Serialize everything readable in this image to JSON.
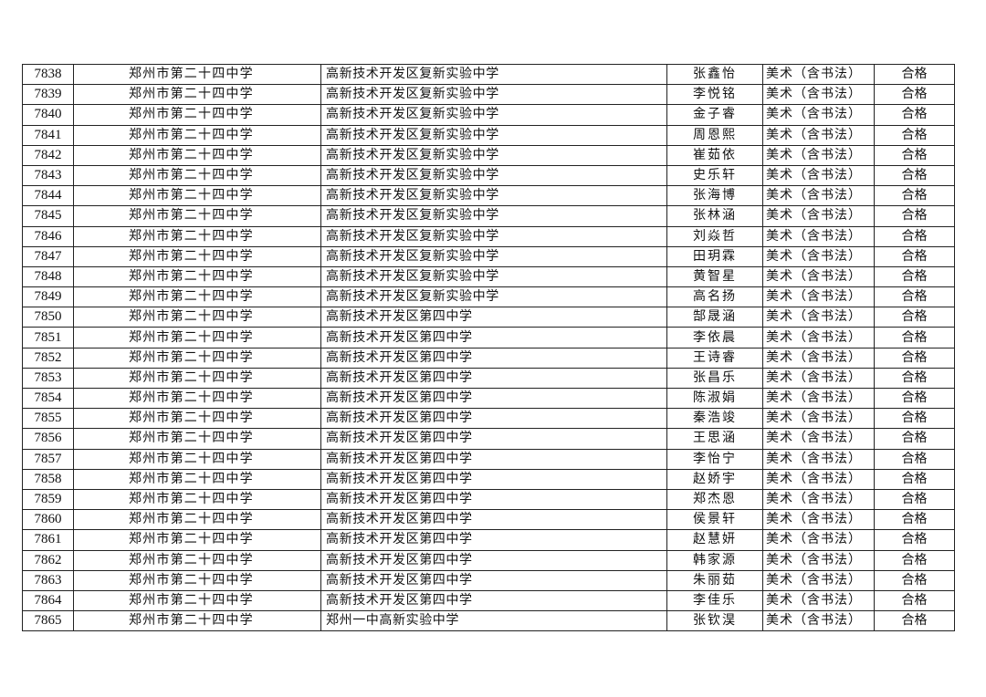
{
  "rows": [
    [
      "7838",
      "郑州市第二十四中学",
      "高新技术开发区复新实验中学",
      "张鑫怡",
      "美术（含书法）",
      "合格"
    ],
    [
      "7839",
      "郑州市第二十四中学",
      "高新技术开发区复新实验中学",
      "李悦铭",
      "美术（含书法）",
      "合格"
    ],
    [
      "7840",
      "郑州市第二十四中学",
      "高新技术开发区复新实验中学",
      "金子睿",
      "美术（含书法）",
      "合格"
    ],
    [
      "7841",
      "郑州市第二十四中学",
      "高新技术开发区复新实验中学",
      "周恩熙",
      "美术（含书法）",
      "合格"
    ],
    [
      "7842",
      "郑州市第二十四中学",
      "高新技术开发区复新实验中学",
      "崔茹依",
      "美术（含书法）",
      "合格"
    ],
    [
      "7843",
      "郑州市第二十四中学",
      "高新技术开发区复新实验中学",
      "史乐轩",
      "美术（含书法）",
      "合格"
    ],
    [
      "7844",
      "郑州市第二十四中学",
      "高新技术开发区复新实验中学",
      "张海博",
      "美术（含书法）",
      "合格"
    ],
    [
      "7845",
      "郑州市第二十四中学",
      "高新技术开发区复新实验中学",
      "张林涵",
      "美术（含书法）",
      "合格"
    ],
    [
      "7846",
      "郑州市第二十四中学",
      "高新技术开发区复新实验中学",
      "刘焱哲",
      "美术（含书法）",
      "合格"
    ],
    [
      "7847",
      "郑州市第二十四中学",
      "高新技术开发区复新实验中学",
      "田玥霖",
      "美术（含书法）",
      "合格"
    ],
    [
      "7848",
      "郑州市第二十四中学",
      "高新技术开发区复新实验中学",
      "黄智星",
      "美术（含书法）",
      "合格"
    ],
    [
      "7849",
      "郑州市第二十四中学",
      "高新技术开发区复新实验中学",
      "高名扬",
      "美术（含书法）",
      "合格"
    ],
    [
      "7850",
      "郑州市第二十四中学",
      "高新技术开发区第四中学",
      "郜晟涵",
      "美术（含书法）",
      "合格"
    ],
    [
      "7851",
      "郑州市第二十四中学",
      "高新技术开发区第四中学",
      "李依晨",
      "美术（含书法）",
      "合格"
    ],
    [
      "7852",
      "郑州市第二十四中学",
      "高新技术开发区第四中学",
      "王诗睿",
      "美术（含书法）",
      "合格"
    ],
    [
      "7853",
      "郑州市第二十四中学",
      "高新技术开发区第四中学",
      "张昌乐",
      "美术（含书法）",
      "合格"
    ],
    [
      "7854",
      "郑州市第二十四中学",
      "高新技术开发区第四中学",
      "陈淑娟",
      "美术（含书法）",
      "合格"
    ],
    [
      "7855",
      "郑州市第二十四中学",
      "高新技术开发区第四中学",
      "秦浩竣",
      "美术（含书法）",
      "合格"
    ],
    [
      "7856",
      "郑州市第二十四中学",
      "高新技术开发区第四中学",
      "王思涵",
      "美术（含书法）",
      "合格"
    ],
    [
      "7857",
      "郑州市第二十四中学",
      "高新技术开发区第四中学",
      "李怡宁",
      "美术（含书法）",
      "合格"
    ],
    [
      "7858",
      "郑州市第二十四中学",
      "高新技术开发区第四中学",
      "赵娇宇",
      "美术（含书法）",
      "合格"
    ],
    [
      "7859",
      "郑州市第二十四中学",
      "高新技术开发区第四中学",
      "郑杰恩",
      "美术（含书法）",
      "合格"
    ],
    [
      "7860",
      "郑州市第二十四中学",
      "高新技术开发区第四中学",
      "侯景轩",
      "美术（含书法）",
      "合格"
    ],
    [
      "7861",
      "郑州市第二十四中学",
      "高新技术开发区第四中学",
      "赵慧妍",
      "美术（含书法）",
      "合格"
    ],
    [
      "7862",
      "郑州市第二十四中学",
      "高新技术开发区第四中学",
      "韩家源",
      "美术（含书法）",
      "合格"
    ],
    [
      "7863",
      "郑州市第二十四中学",
      "高新技术开发区第四中学",
      "朱丽茹",
      "美术（含书法）",
      "合格"
    ],
    [
      "7864",
      "郑州市第二十四中学",
      "高新技术开发区第四中学",
      "李佳乐",
      "美术（含书法）",
      "合格"
    ],
    [
      "7865",
      "郑州市第二十四中学",
      "郑州一中高新实验中学",
      "张钦淏",
      "美术（含书法）",
      "合格"
    ]
  ]
}
